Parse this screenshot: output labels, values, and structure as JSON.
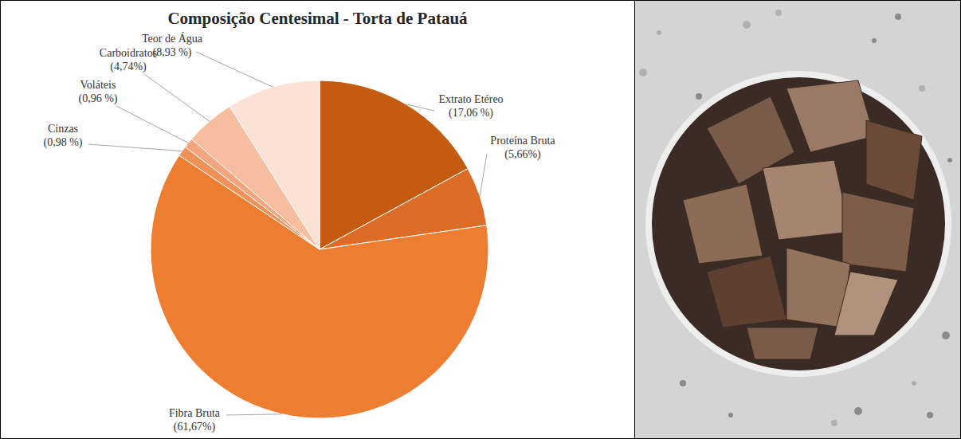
{
  "chart_data": {
    "type": "pie",
    "title": "Composição Centesimal - Torta de Patauá",
    "categories": [
      "Extrato Etéreo",
      "Proteína Bruta",
      "Fibra Bruta",
      "Cinzas",
      "Voláteis",
      "Carboidratos",
      "Teor de Água"
    ],
    "values": [
      17.06,
      5.66,
      61.67,
      0.98,
      0.96,
      4.74,
      8.93
    ],
    "value_labels": [
      "(17,06 %)",
      "(5,66%)",
      "(61,67%)",
      "(0,98 %)",
      "(0,96 %)",
      "(4,74%)",
      "(8,93 %)"
    ],
    "colors": [
      "#c55a11",
      "#dd6d26",
      "#ed7d31",
      "#f0915a",
      "#f3a57e",
      "#f6bd9f",
      "#fbe2d4"
    ],
    "data_labels": true
  }
}
